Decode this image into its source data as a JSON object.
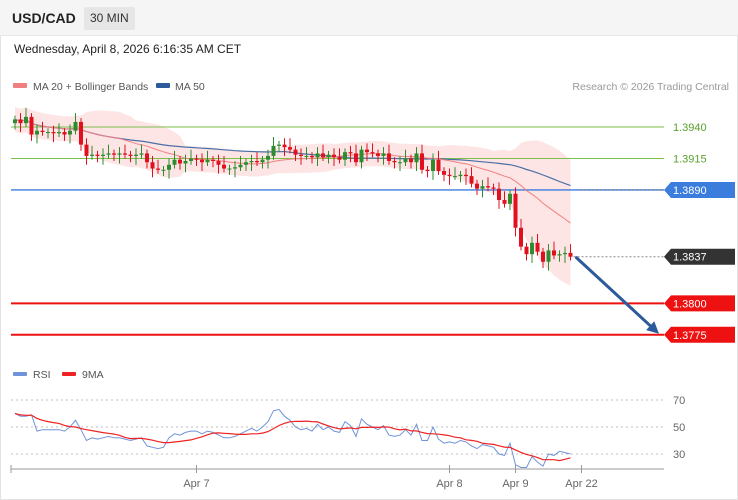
{
  "header": {
    "symbol": "USD/CAD",
    "timeframe": "30 MIN"
  },
  "datetime": "Wednesday, April 8, 2026 6:16:35 AM CET",
  "credit": "Research © 2026 Trading Central",
  "colors": {
    "up": "#2e8b2e",
    "down": "#e0101f",
    "bollinger": "#fde0e0",
    "ma20": "#f08080",
    "ma50": "#4a6fa5",
    "resistance": "#7cc04a",
    "pivot": "#3b7ddd",
    "support": "#ee1111",
    "last": "#333333",
    "arrow": "#2d5a9a",
    "rsi": "#6f93d9",
    "rsi_ma": "#ee2222"
  },
  "chart_data": [
    {
      "type": "candlestick",
      "legend": [
        {
          "name": "MA 20 + Bollinger Bands",
          "color": "#f08080"
        },
        {
          "name": "MA 50",
          "color": "#2d5a9a"
        }
      ],
      "legend_position": "top-left",
      "ylim": [
        1.3755,
        1.3963
      ],
      "price_levels": [
        {
          "label": "1.3940",
          "value": 1.394,
          "kind": "resistance"
        },
        {
          "label": "1.3915",
          "value": 1.3915,
          "kind": "resistance"
        },
        {
          "label": "1.3890",
          "value": 1.389,
          "kind": "pivot"
        },
        {
          "label": "1.3837",
          "value": 1.3837,
          "kind": "last"
        },
        {
          "label": "1.3800",
          "value": 1.38,
          "kind": "support"
        },
        {
          "label": "1.3775",
          "value": 1.3775,
          "kind": "support"
        }
      ],
      "close": [
        1.3946,
        1.3943,
        1.3948,
        1.3934,
        1.3937,
        1.3936,
        1.3936,
        1.3935,
        1.3936,
        1.3934,
        1.3937,
        1.3944,
        1.3926,
        1.3917,
        1.3918,
        1.3917,
        1.3918,
        1.3919,
        1.3918,
        1.3919,
        1.3918,
        1.3917,
        1.3918,
        1.3919,
        1.3912,
        1.3907,
        1.3906,
        1.3906,
        1.391,
        1.3914,
        1.3911,
        1.3913,
        1.3915,
        1.3914,
        1.3912,
        1.3914,
        1.3913,
        1.391,
        1.3907,
        1.3907,
        1.3908,
        1.391,
        1.3912,
        1.3913,
        1.3912,
        1.3914,
        1.3917,
        1.3925,
        1.3926,
        1.3924,
        1.3922,
        1.3918,
        1.3917,
        1.3917,
        1.3916,
        1.3919,
        1.3916,
        1.3918,
        1.3916,
        1.3914,
        1.392,
        1.3919,
        1.3912,
        1.3922,
        1.392,
        1.3919,
        1.3917,
        1.3919,
        1.3913,
        1.3912,
        1.3912,
        1.3915,
        1.3912,
        1.3919,
        1.3906,
        1.3905,
        1.3914,
        1.3905,
        1.3902,
        1.3901,
        1.3901,
        1.3902,
        1.3901,
        1.3895,
        1.3891,
        1.3893,
        1.3892,
        1.3891,
        1.3882,
        1.3879,
        1.3887,
        1.386,
        1.3845,
        1.3839,
        1.3848,
        1.3841,
        1.3833,
        1.3842,
        1.3838,
        1.3839,
        1.384,
        1.3837
      ],
      "rsi_ticks": [
        70,
        50,
        30
      ],
      "rsi_legend": [
        {
          "name": "RSI",
          "color": "#6f93d9"
        },
        {
          "name": "9MA",
          "color": "#ee2222"
        }
      ],
      "rsi": [
        60,
        58,
        58,
        59,
        47,
        48,
        48,
        48,
        48,
        47,
        50,
        55,
        48,
        40,
        42,
        41,
        42,
        43,
        42,
        42,
        41,
        40,
        41,
        42,
        36,
        35,
        34,
        35,
        42,
        45,
        44,
        46,
        47,
        47,
        45,
        47,
        46,
        44,
        42,
        42,
        43,
        45,
        47,
        49,
        47,
        50,
        54,
        62,
        63,
        58,
        55,
        50,
        48,
        49,
        47,
        52,
        48,
        50,
        47,
        46,
        54,
        51,
        43,
        56,
        52,
        50,
        48,
        51,
        44,
        43,
        44,
        48,
        44,
        52,
        40,
        40,
        50,
        41,
        38,
        39,
        38,
        40,
        39,
        36,
        34,
        37,
        36,
        35,
        30,
        29,
        38,
        22,
        20,
        20,
        28,
        24,
        21,
        30,
        29,
        32,
        31,
        30
      ],
      "x_ticks": [
        {
          "label": "Apr 7",
          "index": 33
        },
        {
          "label": "Apr 8",
          "index": 79
        },
        {
          "label": "Apr 9",
          "index": 91
        },
        {
          "label": "Apr 22",
          "index": 103
        }
      ]
    }
  ]
}
